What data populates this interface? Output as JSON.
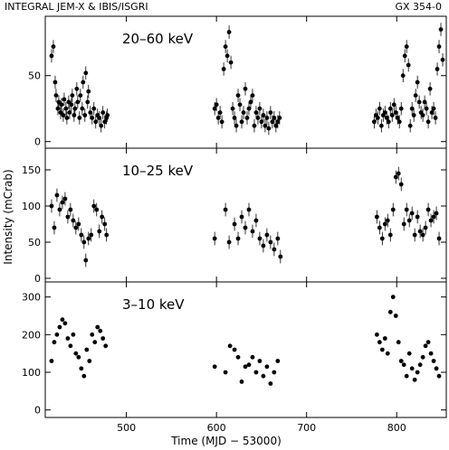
{
  "header": {
    "left": "INTEGRAL JEM-X & IBIS/ISGRI",
    "right": "GX 354-0"
  },
  "chart_data": {
    "type": "scatter",
    "xlabel": "Time (MJD − 53000)",
    "ylabel": "Intensity (mCrab)",
    "xlim": [
      410,
      855
    ],
    "xticks": [
      500,
      600,
      700,
      800
    ],
    "grid": false,
    "panels": [
      {
        "label": "20–60 keV",
        "ylim": [
          -5,
          95
        ],
        "yticks": [
          0,
          50
        ],
        "series": [
          {
            "x": [
              417,
              419,
              421,
              422,
              424,
              425,
              427,
              428,
              430,
              431,
              433,
              434,
              436,
              437,
              439,
              440,
              442,
              443,
              445,
              446,
              448,
              449,
              451,
              452,
              454,
              455,
              457,
              458,
              460,
              462,
              464,
              466,
              468,
              470,
              472,
              474,
              476,
              478,
              479,
              598,
              600,
              602,
              604,
              606,
              608,
              610,
              612,
              614,
              616,
              618,
              620,
              622,
              624,
              626,
              628,
              630,
              632,
              634,
              636,
              638,
              640,
              642,
              644,
              646,
              648,
              650,
              652,
              654,
              656,
              658,
              660,
              662,
              664,
              666,
              668,
              670,
              775,
              777,
              779,
              781,
              783,
              785,
              787,
              789,
              791,
              793,
              795,
              797,
              799,
              801,
              803,
              805,
              807,
              809,
              811,
              813,
              815,
              817,
              819,
              821,
              823,
              825,
              827,
              829,
              831,
              833,
              835,
              837,
              839,
              841,
              843,
              845,
              847,
              849,
              851
            ],
            "y": [
              65,
              72,
              45,
              35,
              25,
              30,
              22,
              28,
              20,
              32,
              25,
              18,
              30,
              22,
              28,
              35,
              20,
              25,
              40,
              30,
              18,
              35,
              25,
              45,
              20,
              52,
              30,
              38,
              22,
              18,
              25,
              15,
              20,
              18,
              12,
              22,
              15,
              18,
              20,
              25,
              28,
              18,
              22,
              15,
              55,
              72,
              65,
              83,
              60,
              25,
              18,
              12,
              35,
              28,
              15,
              22,
              40,
              18,
              25,
              30,
              35,
              12,
              22,
              18,
              25,
              15,
              20,
              12,
              18,
              10,
              22,
              15,
              18,
              12,
              15,
              18,
              15,
              20,
              18,
              25,
              12,
              20,
              22,
              18,
              15,
              25,
              20,
              28,
              22,
              18,
              15,
              25,
              50,
              65,
              72,
              58,
              12,
              25,
              20,
              35,
              45,
              30,
              22,
              20,
              30,
              25,
              15,
              40,
              22,
              25,
              18,
              55,
              72,
              85,
              62
            ]
          }
        ]
      },
      {
        "label": "10–25 keV",
        "ylim": [
          -5,
          180
        ],
        "yticks": [
          0,
          50,
          100,
          150
        ],
        "series": [
          {
            "x": [
              417,
              420,
              423,
              426,
              429,
              432,
              435,
              438,
              441,
              444,
              447,
              450,
              453,
              455,
              458,
              461,
              464,
              467,
              470,
              473,
              476,
              478,
              598,
              610,
              614,
              620,
              624,
              628,
              632,
              636,
              640,
              644,
              648,
              652,
              656,
              660,
              664,
              668,
              671,
              778,
              781,
              784,
              787,
              790,
              793,
              796,
              799,
              802,
              805,
              808,
              811,
              814,
              817,
              820,
              823,
              826,
              829,
              832,
              835,
              838,
              841,
              844,
              847
            ],
            "y": [
              100,
              70,
              115,
              95,
              105,
              110,
              85,
              95,
              80,
              70,
              75,
              60,
              50,
              25,
              55,
              60,
              100,
              95,
              65,
              85,
              75,
              60,
              55,
              95,
              50,
              75,
              55,
              85,
              70,
              95,
              65,
              80,
              55,
              45,
              60,
              50,
              40,
              55,
              30,
              85,
              70,
              55,
              75,
              80,
              60,
              95,
              140,
              145,
              130,
              75,
              95,
              80,
              90,
              60,
              85,
              65,
              60,
              70,
              95,
              80,
              85,
              90,
              55
            ]
          }
        ]
      },
      {
        "label": "3–10 keV",
        "ylim": [
          -20,
          340
        ],
        "yticks": [
          0,
          100,
          200,
          300
        ],
        "series": [
          {
            "x": [
              417,
              420,
              423,
              426,
              429,
              432,
              435,
              438,
              441,
              444,
              447,
              450,
              453,
              456,
              459,
              462,
              465,
              468,
              471,
              474,
              477,
              598,
              610,
              615,
              620,
              624,
              628,
              632,
              636,
              640,
              644,
              648,
              652,
              656,
              660,
              664,
              668,
              778,
              781,
              784,
              787,
              790,
              793,
              796,
              799,
              802,
              805,
              808,
              811,
              814,
              817,
              820,
              823,
              826,
              829,
              832,
              835,
              838,
              841,
              844,
              847
            ],
            "y": [
              130,
              180,
              200,
              220,
              240,
              230,
              190,
              170,
              200,
              150,
              140,
              110,
              90,
              160,
              130,
              200,
              180,
              220,
              210,
              190,
              170,
              115,
              100,
              170,
              160,
              140,
              75,
              115,
              120,
              140,
              100,
              130,
              90,
              115,
              70,
              100,
              130,
              200,
              180,
              160,
              190,
              150,
              260,
              300,
              250,
              180,
              130,
              120,
              90,
              150,
              110,
              80,
              100,
              120,
              140,
              170,
              180,
              150,
              130,
              110,
              90
            ]
          }
        ]
      }
    ]
  }
}
